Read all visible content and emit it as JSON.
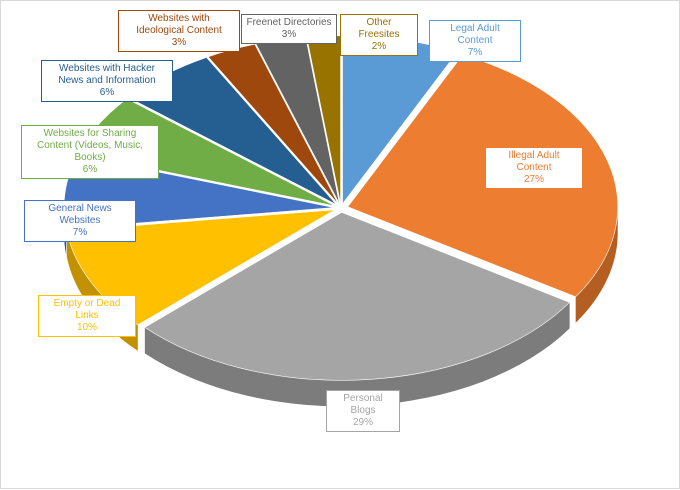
{
  "chart_data": {
    "type": "pie",
    "style": "3d-exploded",
    "slices": [
      {
        "label": "Legal Adult Content",
        "value": 7,
        "value_label": "7%",
        "color": "#5B9BD5",
        "side": "#3F6FA0"
      },
      {
        "label": "Illegal Adult Content",
        "value": 27,
        "value_label": "27%",
        "color": "#ED7D31",
        "side": "#B55E22"
      },
      {
        "label": "Personal Blogs",
        "value": 29,
        "value_label": "29%",
        "color": "#A5A5A5",
        "side": "#7C7C7C"
      },
      {
        "label": "Empty or Dead Links",
        "value": 10,
        "value_label": "10%",
        "color": "#FFC000",
        "side": "#C29100"
      },
      {
        "label": "General News Websites",
        "value": 7,
        "value_label": "7%",
        "color": "#4472C4",
        "side": "#2F5597"
      },
      {
        "label": "Websites for Sharing Content (Videos, Music, Books)",
        "value": 6,
        "value_label": "6%",
        "color": "#70AD47",
        "side": "#4E7E30"
      },
      {
        "label": "Websites with Hacker News and Information",
        "value": 6,
        "value_label": "6%",
        "color": "#255E91",
        "side": "#1A4468"
      },
      {
        "label": "Websites with Ideological Content",
        "value": 3,
        "value_label": "3%",
        "color": "#9E480E",
        "side": "#74340A"
      },
      {
        "label": "Freenet Directories",
        "value": 3,
        "value_label": "3%",
        "color": "#636363",
        "side": "#474747"
      },
      {
        "label": "Other Freesites",
        "value": 2,
        "value_label": "2%",
        "color": "#997300",
        "side": "#6E5300"
      }
    ]
  }
}
